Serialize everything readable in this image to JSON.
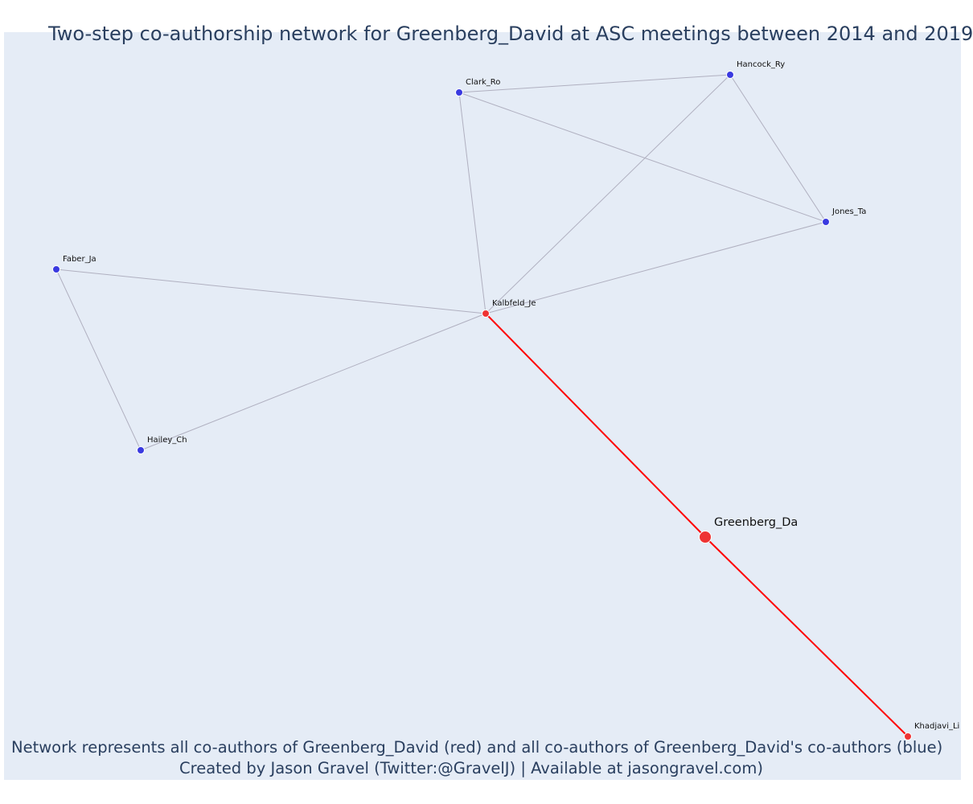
{
  "title": "Two-step co-authorship network for Greenberg_David at ASC meetings between 2014 and 2019",
  "caption": {
    "line1": "Network represents all co-authors of Greenberg_David (red) and all co-authors of Greenberg_David's co-authors (blue)",
    "line2": "Created by Jason Gravel (Twitter:@GravelJ) | Available at jasongravel.com)"
  },
  "colors": {
    "background": "#e5ecf6",
    "red_node": "#ee3333",
    "blue_node": "#3a3ae0",
    "red_edge": "#ff0000",
    "grey_edge": "#b0b0c0",
    "text": "#2a3f5f"
  },
  "nodes": [
    {
      "id": "Greenberg_Da",
      "label": "Greenberg_Da",
      "group": "focal"
    },
    {
      "id": "Kalbfeld_Je",
      "label": "Kalbfeld_Je",
      "group": "red"
    },
    {
      "id": "Khadjavi_Li",
      "label": "Khadjavi_Li",
      "group": "red"
    },
    {
      "id": "Clark_Ro",
      "label": "Clark_Ro",
      "group": "blue"
    },
    {
      "id": "Hancock_Ry",
      "label": "Hancock_Ry",
      "group": "blue"
    },
    {
      "id": "Jones_Ta",
      "label": "Jones_Ta",
      "group": "blue"
    },
    {
      "id": "Faber_Ja",
      "label": "Faber_Ja",
      "group": "blue"
    },
    {
      "id": "Hailey_Ch",
      "label": "Hailey_Ch",
      "group": "blue"
    }
  ],
  "edges": [
    {
      "source": "Greenberg_Da",
      "target": "Kalbfeld_Je",
      "type": "red"
    },
    {
      "source": "Greenberg_Da",
      "target": "Khadjavi_Li",
      "type": "red"
    },
    {
      "source": "Kalbfeld_Je",
      "target": "Clark_Ro",
      "type": "grey"
    },
    {
      "source": "Kalbfeld_Je",
      "target": "Hancock_Ry",
      "type": "grey"
    },
    {
      "source": "Kalbfeld_Je",
      "target": "Jones_Ta",
      "type": "grey"
    },
    {
      "source": "Kalbfeld_Je",
      "target": "Faber_Ja",
      "type": "grey"
    },
    {
      "source": "Kalbfeld_Je",
      "target": "Hailey_Ch",
      "type": "grey"
    },
    {
      "source": "Clark_Ro",
      "target": "Hancock_Ry",
      "type": "grey"
    },
    {
      "source": "Clark_Ro",
      "target": "Jones_Ta",
      "type": "grey"
    },
    {
      "source": "Hancock_Ry",
      "target": "Jones_Ta",
      "type": "grey"
    },
    {
      "source": "Faber_Ja",
      "target": "Hailey_Ch",
      "type": "grey"
    }
  ]
}
